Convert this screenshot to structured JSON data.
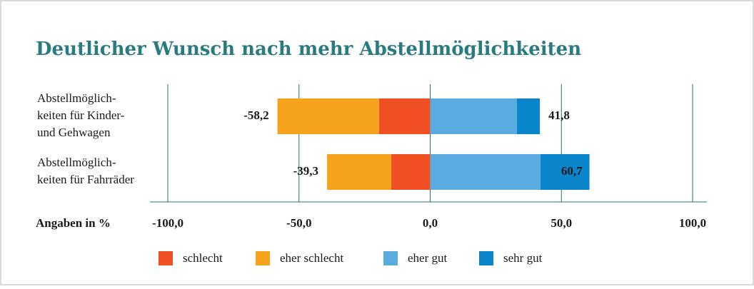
{
  "chart_data": {
    "type": "diverging_bar",
    "title": "Deutlicher Wunsch nach mehr Abstellmöglichkeiten",
    "xlabel": "Angaben in %",
    "categories": [
      [
        "Abstellmöglich-",
        "keiten für Kinder-",
        "und Gehwagen"
      ],
      [
        "Abstellmöglich-",
        "keiten für Fahrräder"
      ]
    ],
    "series": [
      {
        "name": "schlecht",
        "color": "#f04e23",
        "side": "negative",
        "values": [
          -19.5,
          -14.9
        ]
      },
      {
        "name": "eher schlecht",
        "color": "#f5a31d",
        "side": "negative",
        "values": [
          -38.7,
          -24.4
        ]
      },
      {
        "name": "eher gut",
        "color": "#5aace0",
        "side": "positive",
        "values": [
          33.0,
          42.0
        ]
      },
      {
        "name": "sehr gut",
        "color": "#0a85cc",
        "side": "positive",
        "values": [
          8.8,
          18.7
        ]
      }
    ],
    "negative_totals": {
      "values": [
        -58.2,
        -39.3
      ],
      "value_labels": [
        "-58,2",
        "-39,3"
      ]
    },
    "positive_totals": {
      "values": [
        41.8,
        60.7
      ],
      "value_labels": [
        "41,8",
        "60,7"
      ]
    },
    "xlim": [
      -100,
      100
    ],
    "xticks": [
      {
        "value": -100,
        "label": "-100,0"
      },
      {
        "value": -50,
        "label": "-50,0"
      },
      {
        "value": 0,
        "label": "0,0"
      },
      {
        "value": 50,
        "label": "50,0"
      },
      {
        "value": 100,
        "label": "100,0"
      }
    ],
    "grid": true,
    "legend": "bottom"
  }
}
